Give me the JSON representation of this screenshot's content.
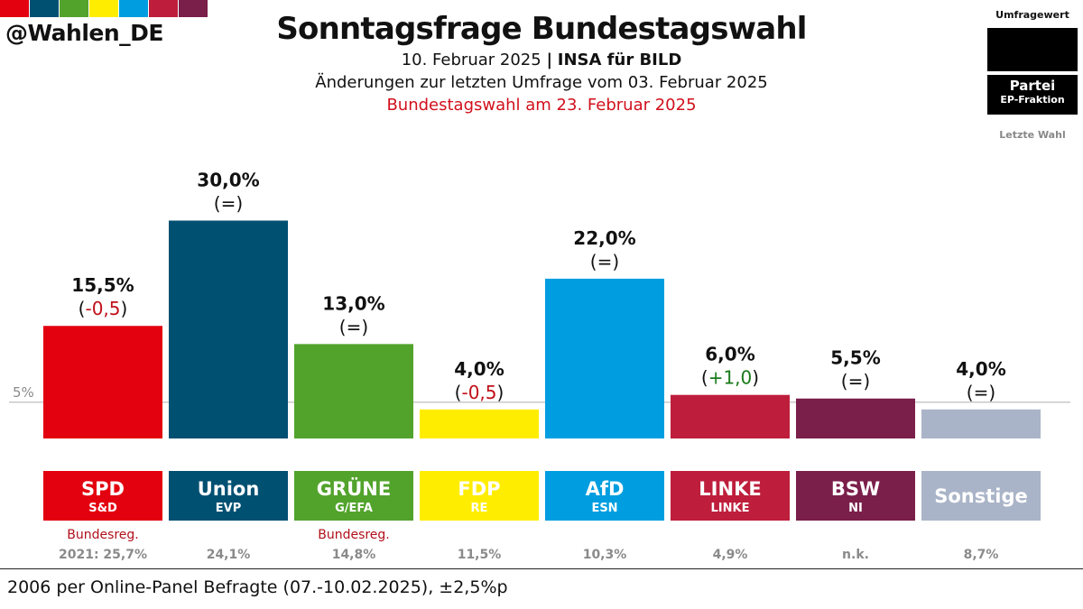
{
  "brand": {
    "handle": "@Wahlen_DE",
    "stripe_colors": [
      "#e3000f",
      "#005072",
      "#52a32c",
      "#ffed00",
      "#009ee0",
      "#be1e3c",
      "#7a1e4a"
    ]
  },
  "header": {
    "title": "Sonntagsfrage Bundestagswahl",
    "date": "10. Februar 2025",
    "separator": "|",
    "pollster": "INSA für BILD",
    "changes_note": "Änderungen zur letzten Umfrage vom 03. Februar 2025",
    "election_note": "Bundestagswahl am 23. Februar 2025"
  },
  "legend": {
    "value_label": "Umfragewert",
    "party_label": "Partei",
    "group_label": "EP-Fraktion",
    "last_label": "Letzte Wahl"
  },
  "chart_data": {
    "type": "bar",
    "reference_line": {
      "value": 5,
      "label": "5%"
    },
    "ylim": [
      0,
      30
    ],
    "categories": [
      "SPD",
      "Union",
      "GRÜNE",
      "FDP",
      "AfD",
      "LINKE",
      "BSW",
      "Sonstige"
    ],
    "values": [
      15.5,
      30.0,
      13.0,
      4.0,
      22.0,
      6.0,
      5.5,
      4.0
    ],
    "bars": [
      {
        "party": "SPD",
        "group": "S&D",
        "value": 15.5,
        "value_label": "15,5%",
        "change": "-0,5",
        "change_dir": "down",
        "color": "#e3000f",
        "gov": "Bundesreg.",
        "last": "2021: 25,7%"
      },
      {
        "party": "Union",
        "group": "EVP",
        "value": 30.0,
        "value_label": "30,0%",
        "change": "=",
        "change_dir": "same",
        "color": "#005072",
        "gov": "",
        "last": "24,1%"
      },
      {
        "party": "GRÜNE",
        "group": "G/EFA",
        "value": 13.0,
        "value_label": "13,0%",
        "change": "=",
        "change_dir": "same",
        "color": "#52a32c",
        "gov": "Bundesreg.",
        "last": "14,8%"
      },
      {
        "party": "FDP",
        "group": "RE",
        "value": 4.0,
        "value_label": "4,0%",
        "change": "-0,5",
        "change_dir": "down",
        "color": "#ffed00",
        "gov": "",
        "last": "11,5%"
      },
      {
        "party": "AfD",
        "group": "ESN",
        "value": 22.0,
        "value_label": "22,0%",
        "change": "=",
        "change_dir": "same",
        "color": "#009ee0",
        "gov": "",
        "last": "10,3%"
      },
      {
        "party": "LINKE",
        "group": "LINKE",
        "value": 6.0,
        "value_label": "6,0%",
        "change": "+1,0",
        "change_dir": "up",
        "color": "#be1e3c",
        "gov": "",
        "last": "4,9%"
      },
      {
        "party": "BSW",
        "group": "NI",
        "value": 5.5,
        "value_label": "5,5%",
        "change": "=",
        "change_dir": "same",
        "color": "#7a1e4a",
        "gov": "",
        "last": "n.k."
      },
      {
        "party": "Sonstige",
        "group": "",
        "value": 4.0,
        "value_label": "4,0%",
        "change": "=",
        "change_dir": "same",
        "color": "#aab4c8",
        "gov": "",
        "last": "8,7%"
      }
    ],
    "colors": {
      "up": "#1a7a1a",
      "down": "#c0101a",
      "same": "#111111",
      "fdp_text": "#000000"
    }
  },
  "footer": {
    "sample_note": "2006 per Online-Panel Befragte (07.-10.02.2025), ±2,5%p"
  }
}
